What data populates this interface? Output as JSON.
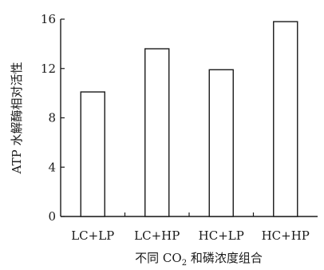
{
  "chart_data": {
    "type": "bar",
    "categories": [
      "LC+LP",
      "LC+HP",
      "HC+LP",
      "HC+HP"
    ],
    "values": [
      10.1,
      13.6,
      11.9,
      15.8
    ],
    "ylabel": "ATP 水解酶相对活性",
    "xlabel_prefix": "不同 CO",
    "xlabel_sub": "2",
    "xlabel_suffix": " 和磷浓度组合",
    "yticks": [
      0,
      4,
      8,
      12,
      16
    ],
    "ylim": [
      0,
      16
    ],
    "grid": false,
    "legend": "none"
  },
  "colors": {
    "ink": "#1a1a1a",
    "bar_fill": "#ffffff",
    "background": "#ffffff"
  }
}
